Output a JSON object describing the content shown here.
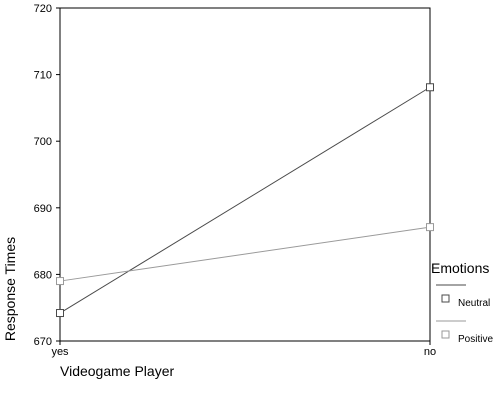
{
  "chart_data": {
    "type": "line",
    "categories": [
      "yes",
      "no"
    ],
    "xlabel": "Videogame Player",
    "ylabel": "Response Times",
    "ylim": [
      670,
      720
    ],
    "yticks": [
      670,
      680,
      690,
      700,
      710,
      720
    ],
    "grid": false,
    "legend": {
      "title": "Emotions",
      "placement": "right"
    },
    "series": [
      {
        "name": "Neutral",
        "values": [
          674.2,
          708.1
        ],
        "color": "#4a4a4a",
        "marker": "square"
      },
      {
        "name": "Positive",
        "values": [
          679,
          687.1
        ],
        "color": "#9a9a9a",
        "marker": "square"
      }
    ]
  }
}
